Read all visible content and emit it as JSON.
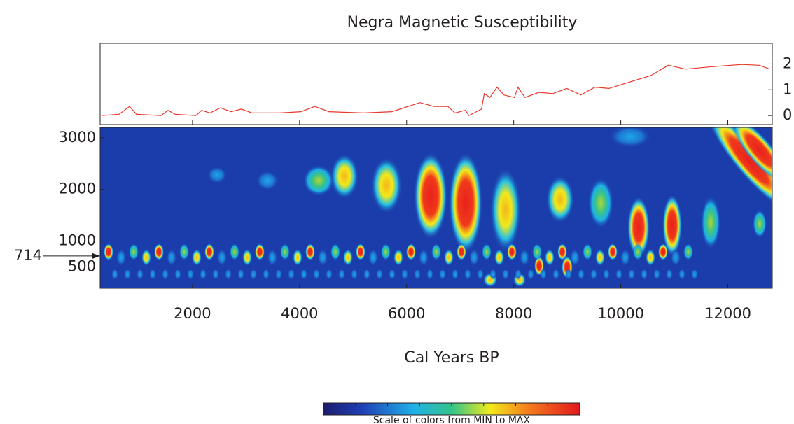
{
  "chart_data": [
    {
      "type": "line",
      "title": "Negra Magnetic Susceptibility",
      "color": "#e8382c",
      "x": [
        301,
        628,
        824,
        954,
        1412,
        1543,
        1673,
        2065,
        2170,
        2327,
        2523,
        2719,
        2915,
        3111,
        3634,
        4026,
        4288,
        4549,
        5202,
        5725,
        6248,
        6510,
        6771,
        6902,
        7098,
        7163,
        7399,
        7451,
        7556,
        7686,
        7817,
        8013,
        8079,
        8209,
        8471,
        8732,
        8992,
        9254,
        9515,
        9777,
        10169,
        10561,
        10888,
        11214,
        11737,
        12260,
        12587,
        12783
      ],
      "values": [
        0,
        0.05,
        0.35,
        0.05,
        0,
        0.2,
        0.05,
        0,
        0.2,
        0.1,
        0.3,
        0.15,
        0.25,
        0.1,
        0.1,
        0.15,
        0.35,
        0.15,
        0.1,
        0.15,
        0.5,
        0.35,
        0.35,
        0.1,
        0.2,
        0,
        0.25,
        0.85,
        0.7,
        1.1,
        0.8,
        0.7,
        1.1,
        0.7,
        0.9,
        0.85,
        1.05,
        0.8,
        1.1,
        1.05,
        1.3,
        1.55,
        1.95,
        1.8,
        1.9,
        1.98,
        1.95,
        1.8
      ],
      "xlim": [
        275,
        12830
      ],
      "ylim": [
        -0.35,
        2.8
      ],
      "yticks": [
        0,
        1,
        2
      ]
    },
    {
      "type": "heatmap",
      "xlabel": "Cal Years BP",
      "xlim": [
        275,
        12830
      ],
      "xticks": [
        2000,
        4000,
        6000,
        8000,
        10000,
        12000
      ],
      "ylim": [
        90,
        3200
      ],
      "yticks": [
        500,
        1000,
        2000,
        3000
      ],
      "marker": 714,
      "colorbar_label": "Scale of colors from MIN to MAX"
    }
  ]
}
